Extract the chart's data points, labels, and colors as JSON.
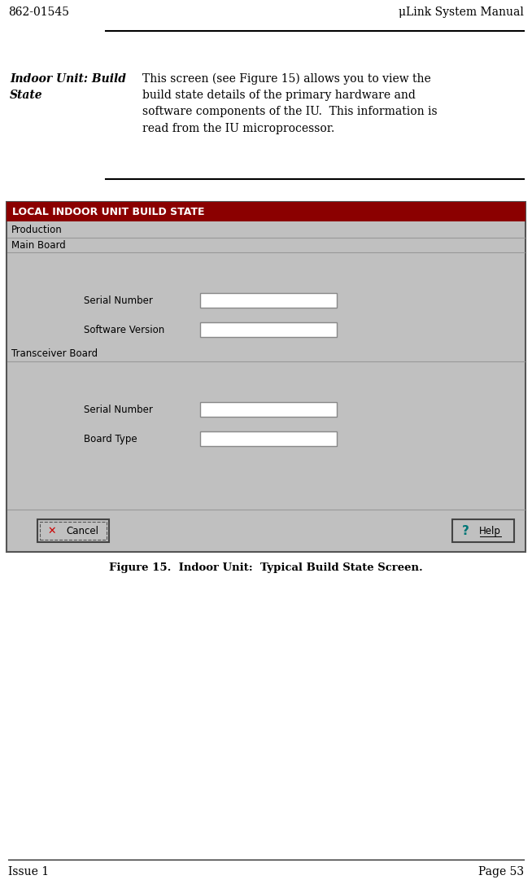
{
  "page_bg": "#ffffff",
  "header_left": "862-01545",
  "header_right": "μLink System Manual",
  "footer_left": "Issue 1",
  "footer_right": "Page 53",
  "section_title": "Indoor Unit: Build\nState",
  "section_body": "This screen (see Figure 15) allows you to view the\nbuild state details of the primary hardware and\nsoftware components of the IU.  This information is\nread from the IU microprocessor.",
  "figure_caption": "Figure 15.  Indoor Unit:  Typical Build State Screen.",
  "dialog_title": "LOCAL INDOOR UNIT BUILD STATE",
  "dialog_title_bg": "#8b0000",
  "dialog_title_fg": "#ffffff",
  "dialog_bg": "#c0c0c0",
  "group1_label": "Production",
  "group2_label": "Main Board",
  "group3_label": "Transceiver Board",
  "field1_label": "Serial Number",
  "field2_label": "Software Version",
  "field3_label": "Serial Number",
  "field4_label": "Board Type",
  "cancel_label": "Cancel",
  "help_label": "Help"
}
